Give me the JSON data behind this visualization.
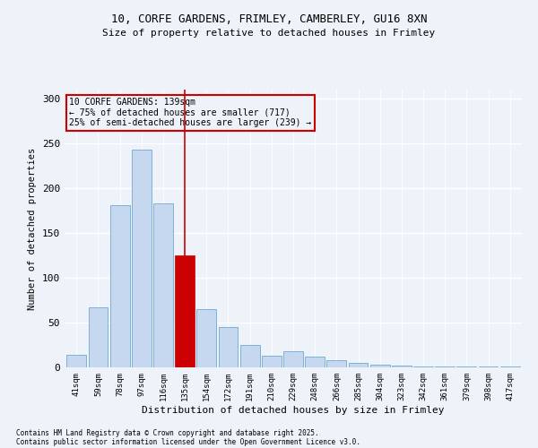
{
  "title1": "10, CORFE GARDENS, FRIMLEY, CAMBERLEY, GU16 8XN",
  "title2": "Size of property relative to detached houses in Frimley",
  "xlabel": "Distribution of detached houses by size in Frimley",
  "ylabel": "Number of detached properties",
  "bins": [
    "41sqm",
    "59sqm",
    "78sqm",
    "97sqm",
    "116sqm",
    "135sqm",
    "154sqm",
    "172sqm",
    "191sqm",
    "210sqm",
    "229sqm",
    "248sqm",
    "266sqm",
    "285sqm",
    "304sqm",
    "323sqm",
    "342sqm",
    "361sqm",
    "379sqm",
    "398sqm",
    "417sqm"
  ],
  "values": [
    14,
    67,
    181,
    243,
    183,
    125,
    65,
    45,
    25,
    13,
    18,
    12,
    8,
    5,
    3,
    2,
    1,
    1,
    1,
    1,
    1
  ],
  "highlight_index": 5,
  "highlight_color": "#cc0000",
  "bar_color": "#c5d8f0",
  "bar_edge_color": "#5a9dc8",
  "annotation_text": "10 CORFE GARDENS: 139sqm\n← 75% of detached houses are smaller (717)\n25% of semi-detached houses are larger (239) →",
  "annotation_box_color": "#cc0000",
  "footer1": "Contains HM Land Registry data © Crown copyright and database right 2025.",
  "footer2": "Contains public sector information licensed under the Open Government Licence v3.0.",
  "bg_color": "#eef2f9",
  "ylim": [
    0,
    310
  ],
  "yticks": [
    0,
    50,
    100,
    150,
    200,
    250,
    300
  ]
}
